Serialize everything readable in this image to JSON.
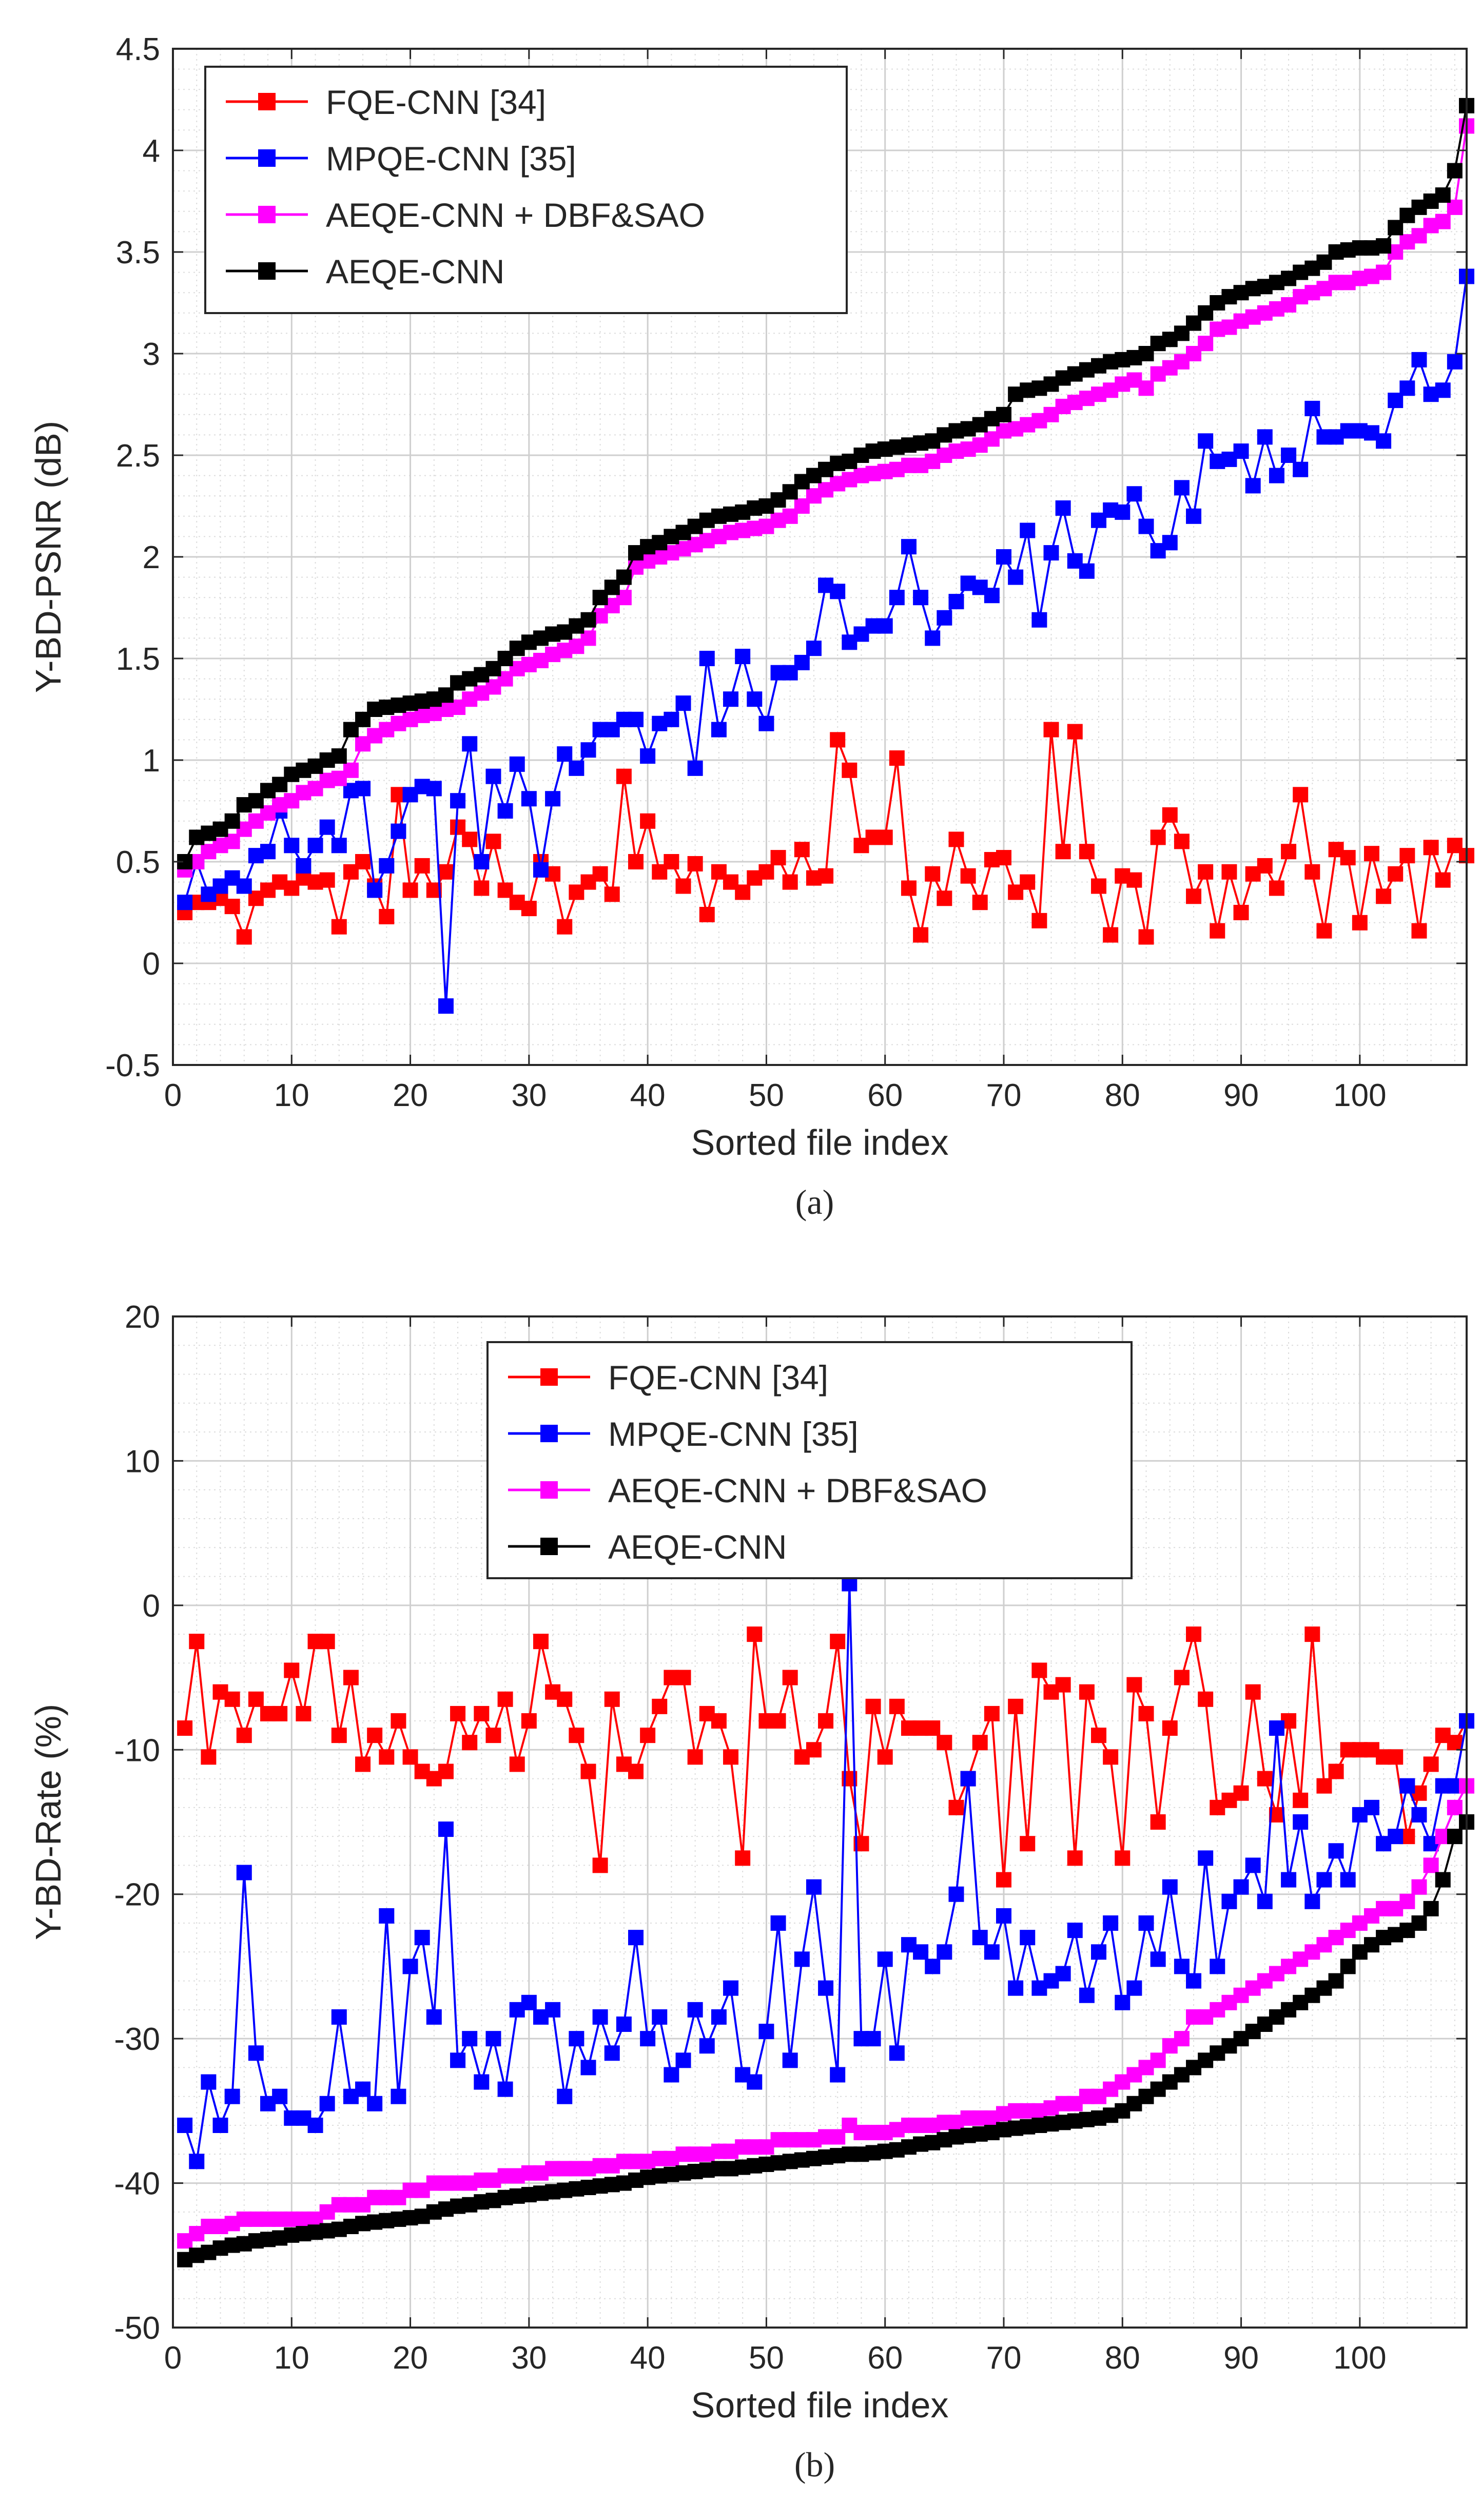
{
  "colors": {
    "fqe": "#ff0000",
    "mpqe": "#0000ff",
    "aeqe_dbf": "#ff00ff",
    "aeqe": "#000000",
    "axis": "#262626",
    "grid": "#dcdcdc"
  },
  "chart_data": [
    {
      "type": "line",
      "caption": "(a)",
      "xlabel": "Sorted file index",
      "ylabel": "Y-BD-PSNR (dB)",
      "xlim": [
        0,
        109
      ],
      "ylim": [
        -0.5,
        4.5
      ],
      "xticks": [
        0,
        10,
        20,
        30,
        40,
        50,
        60,
        70,
        80,
        90,
        100
      ],
      "yticks": [
        -0.5,
        0,
        0.5,
        1,
        1.5,
        2,
        2.5,
        3,
        3.5,
        4,
        4.5
      ],
      "ytick_labels": [
        "-0.5",
        "0",
        "0.5",
        "1",
        "1.5",
        "2",
        "2.5",
        "3",
        "3.5",
        "4",
        "4.5"
      ],
      "grid": true,
      "legend_position": "top-left",
      "legend": [
        "FQE-CNN [34]",
        "MPQE-CNN [35]",
        "AEQE-CNN + DBF&SAO",
        "AEQE-CNN"
      ],
      "series": [
        {
          "name": "FQE-CNN [34]",
          "color_key": "fqe",
          "values": [
            0.25,
            0.3,
            0.3,
            0.32,
            0.28,
            0.13,
            0.32,
            0.36,
            0.4,
            0.37,
            0.42,
            0.4,
            0.41,
            0.18,
            0.45,
            0.5,
            0.38,
            0.23,
            0.83,
            0.36,
            0.48,
            0.36,
            0.45,
            0.67,
            0.61,
            0.37,
            0.6,
            0.36,
            0.3,
            0.27,
            0.5,
            0.44,
            0.18,
            0.35,
            0.4,
            0.44,
            0.34,
            0.92,
            0.5,
            0.7,
            0.45,
            0.5,
            0.38,
            0.49,
            0.24,
            0.45,
            0.4,
            0.35,
            0.42,
            0.45,
            0.52,
            0.4,
            0.56,
            0.42,
            0.43,
            1.1,
            0.95,
            0.58,
            0.62,
            0.62,
            1.01,
            0.37,
            0.14,
            0.44,
            0.32,
            0.61,
            0.43,
            0.3,
            0.51,
            0.52,
            0.35,
            0.4,
            0.21,
            1.15,
            0.55,
            1.14,
            0.55,
            0.38,
            0.14,
            0.43,
            0.41,
            0.13,
            0.62,
            0.73,
            0.6,
            0.33,
            0.45,
            0.16,
            0.45,
            0.25,
            0.44,
            0.48,
            0.37,
            0.55,
            0.83,
            0.45,
            0.16,
            0.56,
            0.52,
            0.2,
            0.54,
            0.33,
            0.44,
            0.53,
            0.16,
            0.57,
            0.41,
            0.58,
            0.53
          ]
        },
        {
          "name": "MPQE-CNN [35]",
          "color_key": "mpqe",
          "values": [
            0.3,
            0.5,
            0.34,
            0.38,
            0.42,
            0.38,
            0.53,
            0.55,
            0.75,
            0.58,
            0.48,
            0.58,
            0.67,
            0.58,
            0.85,
            0.86,
            0.36,
            0.48,
            0.65,
            0.83,
            0.87,
            0.86,
            -0.21,
            0.8,
            1.08,
            0.5,
            0.92,
            0.75,
            0.98,
            0.81,
            0.46,
            0.81,
            1.03,
            0.96,
            1.05,
            1.15,
            1.15,
            1.2,
            1.2,
            1.02,
            1.18,
            1.2,
            1.28,
            0.96,
            1.5,
            1.15,
            1.3,
            1.51,
            1.3,
            1.18,
            1.43,
            1.43,
            1.48,
            1.55,
            1.86,
            1.83,
            1.58,
            1.62,
            1.66,
            1.66,
            1.8,
            2.05,
            1.8,
            1.6,
            1.7,
            1.78,
            1.87,
            1.85,
            1.81,
            2.0,
            1.9,
            2.13,
            1.69,
            2.02,
            2.24,
            1.98,
            1.93,
            2.18,
            2.23,
            2.22,
            2.31,
            2.15,
            2.03,
            2.07,
            2.34,
            2.2,
            2.57,
            2.47,
            2.48,
            2.52,
            2.35,
            2.59,
            2.4,
            2.5,
            2.43,
            2.73,
            2.59,
            2.59,
            2.62,
            2.62,
            2.61,
            2.57,
            2.77,
            2.83,
            2.97,
            2.8,
            2.82,
            2.96,
            3.38
          ]
        },
        {
          "name": "AEQE-CNN + DBF&SAO",
          "color_key": "aeqe_dbf",
          "values": [
            0.46,
            0.5,
            0.55,
            0.58,
            0.6,
            0.66,
            0.7,
            0.74,
            0.78,
            0.8,
            0.84,
            0.86,
            0.9,
            0.91,
            0.95,
            1.08,
            1.12,
            1.15,
            1.18,
            1.2,
            1.22,
            1.23,
            1.25,
            1.26,
            1.3,
            1.33,
            1.36,
            1.4,
            1.45,
            1.47,
            1.49,
            1.52,
            1.54,
            1.56,
            1.6,
            1.71,
            1.76,
            1.8,
            1.95,
            1.98,
            2.0,
            2.02,
            2.04,
            2.06,
            2.08,
            2.1,
            2.12,
            2.13,
            2.14,
            2.15,
            2.18,
            2.2,
            2.25,
            2.3,
            2.33,
            2.36,
            2.38,
            2.4,
            2.41,
            2.42,
            2.43,
            2.45,
            2.45,
            2.47,
            2.5,
            2.52,
            2.53,
            2.55,
            2.58,
            2.62,
            2.63,
            2.65,
            2.67,
            2.7,
            2.74,
            2.76,
            2.78,
            2.8,
            2.82,
            2.85,
            2.87,
            2.83,
            2.9,
            2.93,
            2.96,
            3.0,
            3.05,
            3.12,
            3.13,
            3.16,
            3.18,
            3.2,
            3.22,
            3.24,
            3.28,
            3.3,
            3.32,
            3.35,
            3.35,
            3.37,
            3.38,
            3.4,
            3.5,
            3.55,
            3.58,
            3.63,
            3.65,
            3.72,
            4.12
          ]
        },
        {
          "name": "AEQE-CNN",
          "color_key": "aeqe",
          "values": [
            0.5,
            0.62,
            0.64,
            0.66,
            0.7,
            0.78,
            0.8,
            0.85,
            0.88,
            0.93,
            0.95,
            0.97,
            1.0,
            1.02,
            1.15,
            1.2,
            1.25,
            1.26,
            1.27,
            1.28,
            1.29,
            1.3,
            1.32,
            1.38,
            1.4,
            1.42,
            1.45,
            1.5,
            1.55,
            1.58,
            1.6,
            1.62,
            1.63,
            1.66,
            1.69,
            1.8,
            1.85,
            1.9,
            2.02,
            2.05,
            2.07,
            2.1,
            2.12,
            2.15,
            2.18,
            2.2,
            2.21,
            2.22,
            2.24,
            2.25,
            2.28,
            2.32,
            2.37,
            2.4,
            2.43,
            2.46,
            2.47,
            2.5,
            2.52,
            2.53,
            2.54,
            2.55,
            2.56,
            2.57,
            2.6,
            2.62,
            2.63,
            2.65,
            2.68,
            2.7,
            2.8,
            2.82,
            2.83,
            2.85,
            2.88,
            2.9,
            2.92,
            2.94,
            2.96,
            2.97,
            2.98,
            3.0,
            3.05,
            3.07,
            3.1,
            3.15,
            3.2,
            3.25,
            3.28,
            3.3,
            3.32,
            3.33,
            3.35,
            3.37,
            3.4,
            3.42,
            3.45,
            3.5,
            3.51,
            3.52,
            3.52,
            3.53,
            3.62,
            3.68,
            3.72,
            3.75,
            3.78,
            3.9,
            4.22
          ]
        }
      ]
    },
    {
      "type": "line",
      "caption": "(b)",
      "xlabel": "Sorted file index",
      "ylabel": "Y-BD-Rate (%)",
      "xlim": [
        0,
        109
      ],
      "ylim": [
        -50,
        20
      ],
      "xticks": [
        0,
        10,
        20,
        30,
        40,
        50,
        60,
        70,
        80,
        90,
        100
      ],
      "yticks": [
        -50,
        -40,
        -30,
        -20,
        -10,
        0,
        10,
        20
      ],
      "ytick_labels": [
        "-50",
        "-40",
        "-30",
        "-20",
        "-10",
        "0",
        "10",
        "20"
      ],
      "grid": true,
      "legend_position": "top-center",
      "legend": [
        "FQE-CNN [34]",
        "MPQE-CNN [35]",
        "AEQE-CNN + DBF&SAO",
        "AEQE-CNN"
      ],
      "series": [
        {
          "name": "FQE-CNN [34]",
          "color_key": "fqe",
          "values": [
            -8.5,
            -2.5,
            -10.5,
            -6.0,
            -6.5,
            -9.0,
            -6.5,
            -7.5,
            -7.5,
            -4.5,
            -7.5,
            -2.5,
            -2.5,
            -9.0,
            -5.0,
            -11.0,
            -9.0,
            -10.5,
            -8.0,
            -10.5,
            -11.5,
            -12.0,
            -11.5,
            -7.5,
            -9.5,
            -7.5,
            -9.0,
            -6.5,
            -11.0,
            -8.0,
            -2.5,
            -6.0,
            -6.5,
            -9.0,
            -11.5,
            -18.0,
            -6.5,
            -11.0,
            -11.5,
            -9.0,
            -7.0,
            -5.0,
            -5.0,
            -10.5,
            -7.5,
            -8.0,
            -10.5,
            -17.5,
            -2.0,
            -8.0,
            -8.0,
            -5.0,
            -10.5,
            -10.0,
            -8.0,
            -2.5,
            -12.0,
            -16.5,
            -7.0,
            -10.5,
            -7.0,
            -8.5,
            -8.5,
            -8.5,
            -9.5,
            -14.0,
            -12.0,
            -9.5,
            -7.5,
            -19.0,
            -7.0,
            -16.5,
            -4.5,
            -6.0,
            -5.5,
            -17.5,
            -6.0,
            -9.0,
            -10.5,
            -17.5,
            -5.5,
            -7.5,
            -15.0,
            -8.5,
            -5.0,
            -2.0,
            -6.5,
            -14.0,
            -13.5,
            -13.0,
            -6.0,
            -12.0,
            -14.5,
            -8.0,
            -13.5,
            -2.0,
            -12.5,
            -11.5,
            -10.0,
            -10.0,
            -10.0,
            -10.5,
            -10.5,
            -16.0,
            -13.0,
            -11.0,
            -9.0,
            -9.5,
            -8.0
          ]
        },
        {
          "name": "MPQE-CNN [35]",
          "color_key": "mpqe",
          "values": [
            -36.0,
            -38.5,
            -33.0,
            -36.0,
            -34.0,
            -18.5,
            -31.0,
            -34.5,
            -34.0,
            -35.5,
            -35.5,
            -36.0,
            -34.5,
            -28.5,
            -34.0,
            -33.5,
            -34.5,
            -21.5,
            -34.0,
            -25.0,
            -23.0,
            -28.5,
            -15.5,
            -31.5,
            -30.0,
            -33.0,
            -30.0,
            -33.5,
            -28.0,
            -27.5,
            -28.5,
            -28.0,
            -34.0,
            -30.0,
            -32.0,
            -28.5,
            -31.0,
            -29.0,
            -23.0,
            -30.0,
            -28.5,
            -32.5,
            -31.5,
            -28.0,
            -30.5,
            -28.5,
            -26.5,
            -32.5,
            -33.0,
            -29.5,
            -22.0,
            -31.5,
            -24.5,
            -19.5,
            -26.5,
            -32.5,
            1.5,
            -30.0,
            -30.0,
            -24.5,
            -31.0,
            -23.5,
            -24.0,
            -25.0,
            -24.0,
            -20.0,
            -12.0,
            -23.0,
            -24.0,
            -21.5,
            -26.5,
            -23.0,
            -26.5,
            -26.0,
            -25.5,
            -22.5,
            -27.0,
            -24.0,
            -22.0,
            -27.5,
            -26.5,
            -22.0,
            -24.5,
            -19.5,
            -25.0,
            -26.0,
            -17.5,
            -25.0,
            -20.5,
            -19.5,
            -18.0,
            -20.5,
            -8.5,
            -19.0,
            -15.0,
            -20.5,
            -19.0,
            -17.0,
            -19.0,
            -14.5,
            -14.0,
            -16.5,
            -16.0,
            -12.5,
            -14.5,
            -16.5,
            -12.5,
            -12.5,
            -8.0
          ]
        },
        {
          "name": "AEQE-CNN + DBF&SAO",
          "color_key": "aeqe_dbf",
          "values": [
            -44.0,
            -43.5,
            -43.0,
            -43.0,
            -42.8,
            -42.5,
            -42.5,
            -42.5,
            -42.5,
            -42.5,
            -42.5,
            -42.5,
            -42.0,
            -41.5,
            -41.5,
            -41.5,
            -41.0,
            -41.0,
            -41.0,
            -40.5,
            -40.5,
            -40.0,
            -40.0,
            -40.0,
            -40.0,
            -39.8,
            -39.8,
            -39.5,
            -39.5,
            -39.3,
            -39.3,
            -39.0,
            -39.0,
            -39.0,
            -39.0,
            -38.8,
            -38.8,
            -38.5,
            -38.5,
            -38.5,
            -38.3,
            -38.3,
            -38.0,
            -38.0,
            -38.0,
            -37.8,
            -37.8,
            -37.5,
            -37.5,
            -37.5,
            -37.0,
            -37.0,
            -37.0,
            -37.0,
            -36.8,
            -36.8,
            -36.0,
            -36.5,
            -36.5,
            -36.5,
            -36.3,
            -36.0,
            -36.0,
            -36.0,
            -35.8,
            -35.8,
            -35.5,
            -35.5,
            -35.5,
            -35.2,
            -35.0,
            -35.0,
            -35.0,
            -34.8,
            -34.5,
            -34.5,
            -34.0,
            -34.0,
            -33.5,
            -33.0,
            -32.5,
            -32.0,
            -31.5,
            -30.5,
            -30.0,
            -28.5,
            -28.5,
            -28.0,
            -27.5,
            -27.0,
            -26.5,
            -26.0,
            -25.5,
            -25.0,
            -24.5,
            -24.0,
            -23.5,
            -23.0,
            -22.5,
            -22.0,
            -21.5,
            -21.0,
            -21.0,
            -20.5,
            -19.5,
            -18.0,
            -16.0,
            -14.0,
            -12.5
          ]
        },
        {
          "name": "AEQE-CNN",
          "color_key": "aeqe",
          "values": [
            -45.3,
            -45.0,
            -44.8,
            -44.5,
            -44.3,
            -44.2,
            -44.0,
            -43.9,
            -43.8,
            -43.6,
            -43.5,
            -43.4,
            -43.3,
            -43.2,
            -43.0,
            -42.8,
            -42.7,
            -42.6,
            -42.5,
            -42.4,
            -42.3,
            -42.0,
            -41.8,
            -41.6,
            -41.5,
            -41.3,
            -41.2,
            -41.0,
            -40.9,
            -40.8,
            -40.7,
            -40.6,
            -40.5,
            -40.4,
            -40.3,
            -40.2,
            -40.1,
            -40.0,
            -39.8,
            -39.6,
            -39.5,
            -39.4,
            -39.3,
            -39.2,
            -39.1,
            -39.0,
            -39.0,
            -38.9,
            -38.8,
            -38.7,
            -38.6,
            -38.5,
            -38.4,
            -38.3,
            -38.2,
            -38.1,
            -38.0,
            -38.0,
            -37.9,
            -37.8,
            -37.7,
            -37.5,
            -37.3,
            -37.2,
            -37.0,
            -36.8,
            -36.7,
            -36.6,
            -36.5,
            -36.3,
            -36.2,
            -36.1,
            -36.0,
            -35.9,
            -35.8,
            -35.7,
            -35.6,
            -35.5,
            -35.3,
            -35.0,
            -34.5,
            -34.0,
            -33.5,
            -33.0,
            -32.5,
            -32.0,
            -31.5,
            -31.0,
            -30.5,
            -30.0,
            -29.5,
            -29.0,
            -28.5,
            -28.0,
            -27.5,
            -27.0,
            -26.5,
            -26.0,
            -25.0,
            -24.0,
            -23.5,
            -23.0,
            -22.8,
            -22.5,
            -22.0,
            -21.0,
            -19.0,
            -16.0,
            -15.0
          ]
        }
      ]
    }
  ]
}
